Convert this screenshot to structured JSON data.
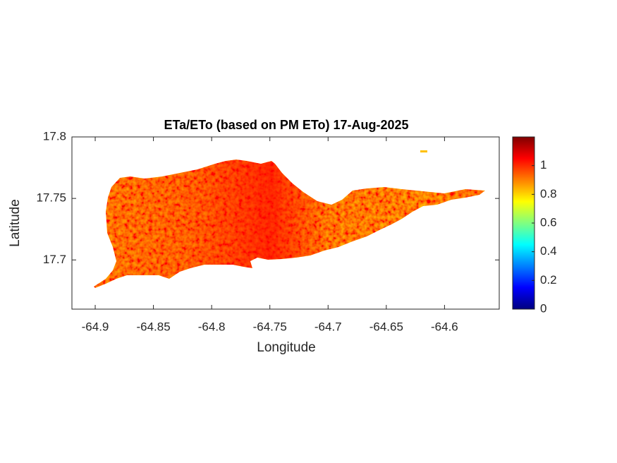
{
  "chart_data": {
    "type": "map",
    "title": "ETa/ETo (based on PM ETo) 17-Aug-2025",
    "xlabel": "Longitude",
    "ylabel": "Latitude",
    "xlim": [
      -64.92,
      -64.553
    ],
    "xticks": [
      -64.9,
      -64.85,
      -64.8,
      -64.75,
      -64.7,
      -64.65,
      -64.6
    ],
    "ylim": [
      17.66,
      17.8
    ],
    "yticks": [
      17.7,
      17.75,
      17.8
    ],
    "colorbar": {
      "colormap": "jet",
      "lim": [
        0,
        1.2
      ],
      "ticks": [
        0,
        0.2,
        0.4,
        0.6,
        0.8,
        1
      ]
    }
  }
}
